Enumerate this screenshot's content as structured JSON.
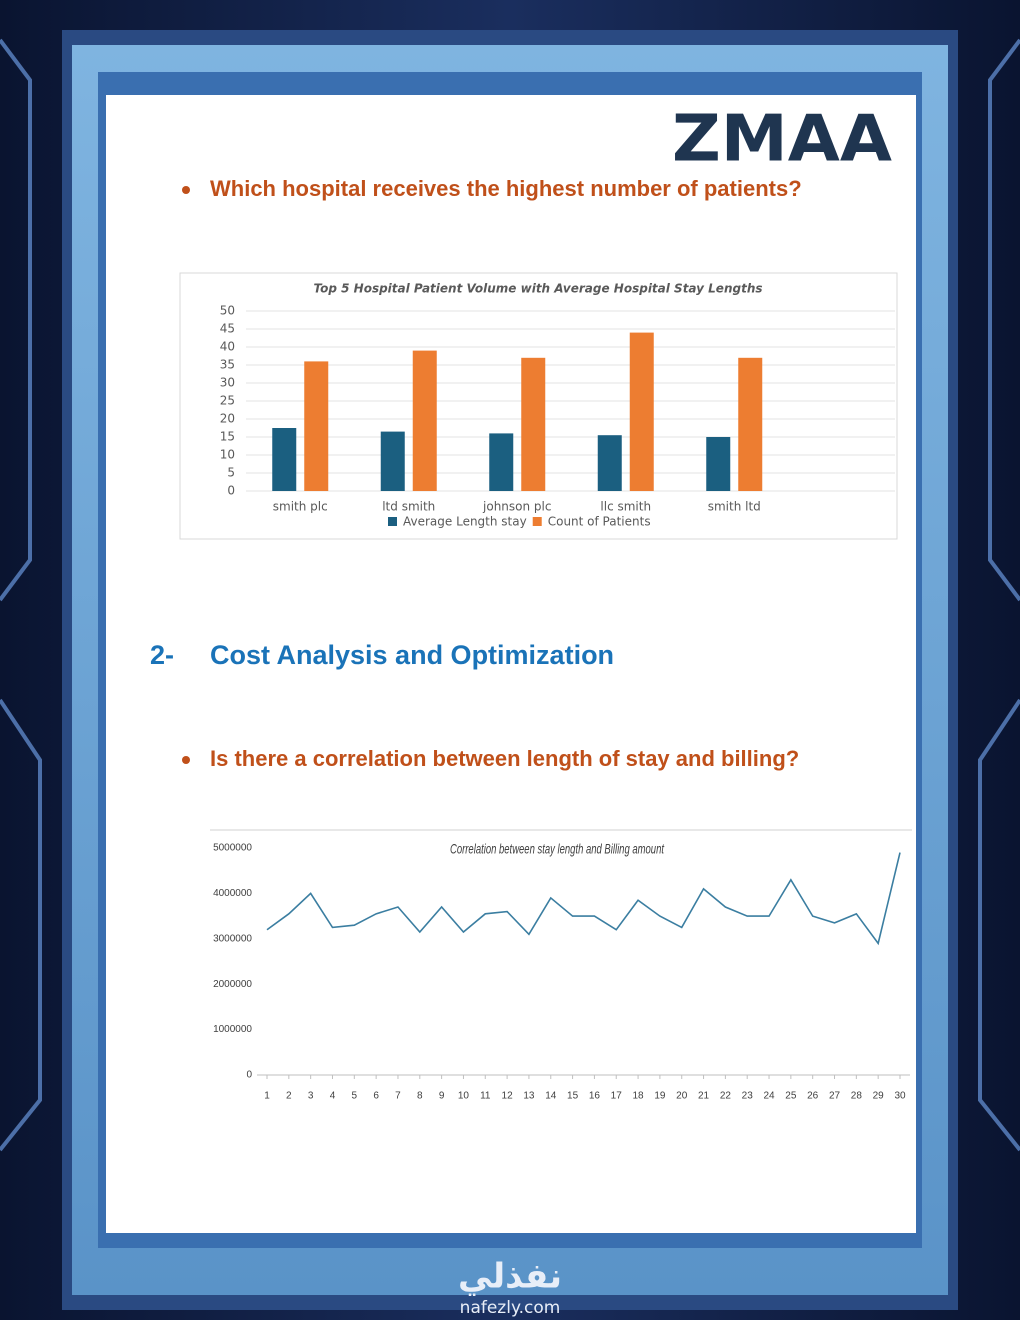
{
  "logo": "ZMAA",
  "questions": [
    "Which hospital receives the highest number of patients?",
    "Is there a correlation between length of stay and billing?"
  ],
  "section": {
    "number": "2-",
    "title": "Cost Analysis and Optimization"
  },
  "watermark": {
    "arabic": "نفذلي",
    "url": "nafezly.com"
  },
  "chart_data": [
    {
      "type": "bar",
      "title": "Top 5 Hospital Patient Volume with Average Hospital Stay Lengths",
      "categories": [
        "smith plc",
        "ltd smith",
        "johnson plc",
        "llc smith",
        "smith ltd"
      ],
      "series": [
        {
          "name": "Average Length stay",
          "color": "#1b5f80",
          "values": [
            17.5,
            16.5,
            16,
            15.5,
            15
          ]
        },
        {
          "name": "Count of Patients",
          "color": "#ed7d31",
          "values": [
            36,
            39,
            37,
            44,
            37
          ]
        }
      ],
      "ylim": [
        0,
        50
      ],
      "yticks": [
        0,
        5,
        10,
        15,
        20,
        25,
        30,
        35,
        40,
        45,
        50
      ],
      "grid": true,
      "legend": "bottom"
    },
    {
      "type": "line",
      "title": "Correlation between  stay length and  Billing amount",
      "x": [
        1,
        2,
        3,
        4,
        5,
        6,
        7,
        8,
        9,
        10,
        11,
        12,
        13,
        14,
        15,
        16,
        17,
        18,
        19,
        20,
        21,
        22,
        23,
        24,
        25,
        26,
        27,
        28,
        29,
        30
      ],
      "values": [
        3200000,
        3550000,
        4000000,
        3250000,
        3300000,
        3550000,
        3700000,
        3150000,
        3700000,
        3150000,
        3550000,
        3600000,
        3100000,
        3900000,
        3500000,
        3500000,
        3200000,
        3850000,
        3500000,
        3250000,
        4100000,
        3700000,
        3500000,
        3500000,
        4300000,
        3500000,
        3350000,
        3550000,
        2900000,
        4900000
      ],
      "color": "#3b7ea1",
      "xlim": [
        1,
        30
      ],
      "ylim": [
        0,
        5000000
      ],
      "yticks": [
        0,
        1000000,
        2000000,
        3000000,
        4000000,
        5000000
      ],
      "grid": false
    }
  ]
}
